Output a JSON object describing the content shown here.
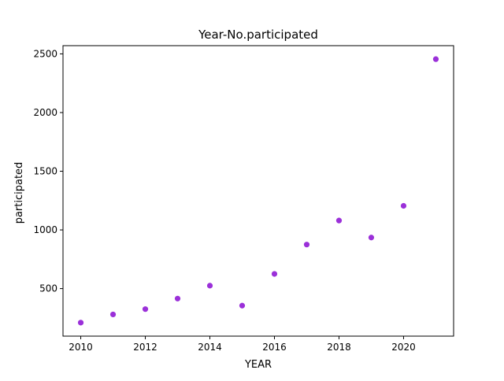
{
  "chart_data": {
    "type": "scatter",
    "title": "Year-No.participated",
    "xlabel": "YEAR",
    "ylabel": "participated",
    "x": [
      2010,
      2011,
      2012,
      2013,
      2014,
      2015,
      2016,
      2017,
      2018,
      2019,
      2020,
      2021
    ],
    "y": [
      210,
      280,
      325,
      415,
      525,
      355,
      625,
      875,
      1080,
      935,
      1205,
      2455
    ],
    "xlim": [
      2009.45,
      2021.55
    ],
    "ylim": [
      95,
      2570
    ],
    "xticks": [
      2010,
      2012,
      2014,
      2016,
      2018,
      2020
    ],
    "yticks": [
      500,
      1000,
      1500,
      2000,
      2500
    ],
    "grid": false,
    "marker_color": "#9b30d9"
  }
}
